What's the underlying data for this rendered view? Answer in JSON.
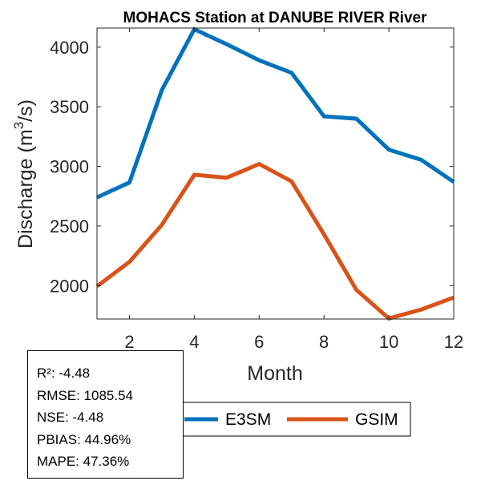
{
  "chart_data": {
    "type": "line",
    "title": "MOHACS  Station at  DANUBE RIVER  River",
    "xlabel": "Month",
    "ylabel": "Discharge (m³/s)",
    "ylabel_parts": {
      "prefix": "Discharge (m",
      "superscript": "3",
      "suffix": "/s)"
    },
    "xlim": [
      1,
      12
    ],
    "ylim": [
      1720,
      4160
    ],
    "xticks": [
      2,
      4,
      6,
      8,
      10,
      12
    ],
    "yticks": [
      2000,
      2500,
      3000,
      3500,
      4000
    ],
    "x": [
      1,
      2,
      3,
      4,
      5,
      6,
      7,
      8,
      9,
      10,
      11,
      12
    ],
    "series": [
      {
        "name": "E3SM",
        "color": "#0072BD",
        "values": [
          2740,
          2865,
          3640,
          4150,
          4025,
          3890,
          3785,
          3420,
          3400,
          3140,
          3055,
          2870
        ]
      },
      {
        "name": "GSIM",
        "color": "#D95319",
        "values": [
          1995,
          2200,
          2510,
          2930,
          2905,
          3020,
          2875,
          2430,
          1965,
          1725,
          1800,
          1900
        ]
      }
    ],
    "legend_position": "bottom-center",
    "grid": false
  },
  "stats": [
    "R²: -4.48",
    "RMSE: 1085.54",
    "NSE: -4.48",
    "PBIAS: 44.96%",
    "MAPE: 47.36%"
  ]
}
